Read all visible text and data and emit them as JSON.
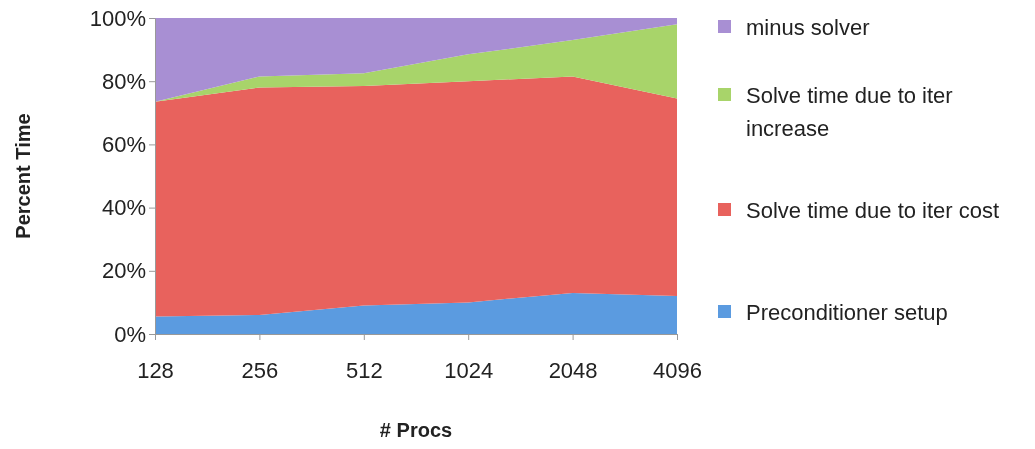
{
  "chart_data": {
    "type": "area",
    "stacked": true,
    "xlabel": "# Procs",
    "ylabel": "Percent Time",
    "categories": [
      "128",
      "256",
      "512",
      "1024",
      "2048",
      "4096"
    ],
    "series": [
      {
        "name": "Preconditioner setup",
        "color": "#5b9be0",
        "values": [
          5.5,
          6,
          9,
          10,
          13,
          12
        ]
      },
      {
        "name": "Solve time due to iter cost",
        "color": "#e8625d",
        "values": [
          68,
          72,
          69.5,
          70,
          68.5,
          62.5
        ]
      },
      {
        "name": "Solve time due to iter increase",
        "color": "#a8d46a",
        "values": [
          0,
          3.5,
          4,
          8.5,
          11.5,
          23.5
        ]
      },
      {
        "name": "minus solver",
        "color": "#a88fd3",
        "values": [
          26.5,
          18.5,
          17.5,
          11.5,
          7,
          2
        ]
      }
    ],
    "ylim": [
      0,
      100
    ],
    "yticks": [
      {
        "value": 0,
        "label": "0%"
      },
      {
        "value": 20,
        "label": "20%"
      },
      {
        "value": 40,
        "label": "40%"
      },
      {
        "value": 60,
        "label": "60%"
      },
      {
        "value": 80,
        "label": "80%"
      },
      {
        "value": 100,
        "label": "100%"
      }
    ],
    "legend": "right"
  }
}
